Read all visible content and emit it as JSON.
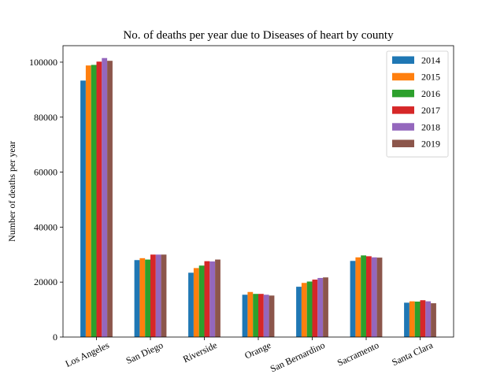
{
  "chart_data": {
    "type": "bar",
    "title": "No. of deaths per year due to Diseases of heart by county",
    "xlabel": "",
    "ylabel": "Number of deaths per year",
    "ylim": [
      0,
      106000
    ],
    "yticks": [
      0,
      20000,
      40000,
      60000,
      80000,
      100000
    ],
    "grid": false,
    "legend_position": "top-right",
    "categories": [
      "Los Angeles",
      "San Diego",
      "Riverside",
      "Orange",
      "San Bernardino",
      "Sacramento",
      "Santa Clara"
    ],
    "series": [
      {
        "name": "2014",
        "color": "#1f77b4",
        "values": [
          93300,
          28000,
          23400,
          15400,
          18300,
          27700,
          12500
        ]
      },
      {
        "name": "2015",
        "color": "#ff7f0e",
        "values": [
          98800,
          28700,
          25100,
          16400,
          19700,
          29000,
          13000
        ]
      },
      {
        "name": "2016",
        "color": "#2ca02c",
        "values": [
          99000,
          28200,
          26000,
          15700,
          20200,
          29700,
          12900
        ]
      },
      {
        "name": "2017",
        "color": "#d62728",
        "values": [
          100200,
          30000,
          27600,
          15700,
          20900,
          29400,
          13400
        ]
      },
      {
        "name": "2018",
        "color": "#9467bd",
        "values": [
          101500,
          30000,
          27500,
          15400,
          21500,
          29000,
          13000
        ]
      },
      {
        "name": "2019",
        "color": "#8c564b",
        "values": [
          100500,
          30000,
          28200,
          15100,
          21700,
          28900,
          12300
        ]
      }
    ]
  }
}
